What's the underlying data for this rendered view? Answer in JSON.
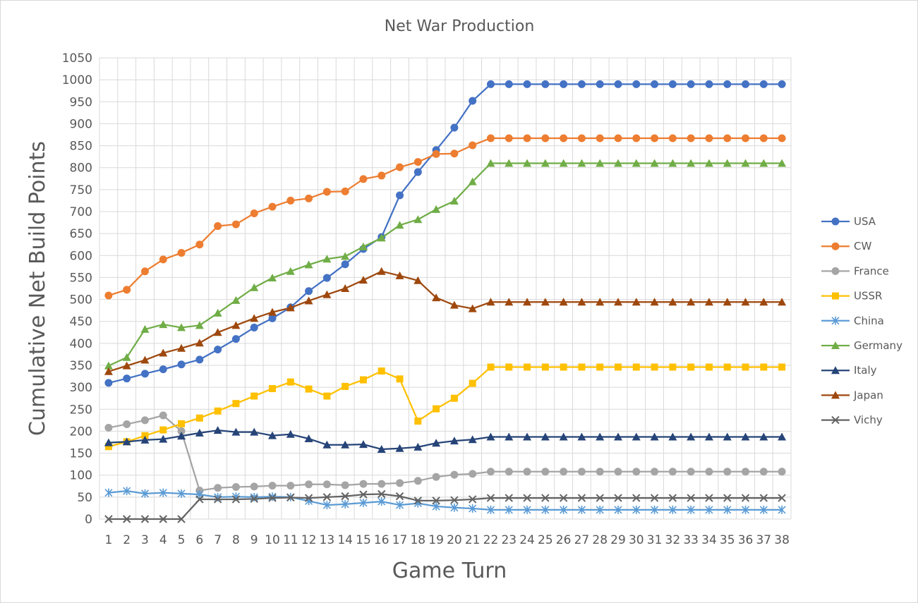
{
  "chart_data": {
    "type": "line",
    "title": "Net War Production",
    "xlabel": "Game Turn",
    "ylabel": "Cumulative Net Build Points",
    "ylim": [
      0,
      1050
    ],
    "ystep": 50,
    "grid": true,
    "legend_position": "right",
    "x": [
      1,
      2,
      3,
      4,
      5,
      6,
      7,
      8,
      9,
      10,
      11,
      12,
      13,
      14,
      15,
      16,
      17,
      18,
      19,
      20,
      21,
      22,
      23,
      24,
      25,
      26,
      27,
      28,
      29,
      30,
      31,
      32,
      33,
      34,
      35,
      36,
      37,
      38
    ],
    "series": [
      {
        "name": "USA",
        "color": "#4472c4",
        "marker": "circle",
        "values": [
          310,
          320,
          331,
          341,
          352,
          363,
          386,
          410,
          436,
          457,
          482,
          519,
          549,
          580,
          615,
          642,
          737,
          790,
          840,
          891,
          952,
          990,
          990,
          990,
          990,
          990,
          990,
          990,
          990,
          990,
          990,
          990,
          990,
          990,
          990,
          990,
          990,
          990
        ]
      },
      {
        "name": "CW",
        "color": "#ed7d31",
        "marker": "circle",
        "values": [
          509,
          522,
          564,
          591,
          606,
          625,
          667,
          671,
          696,
          711,
          725,
          730,
          745,
          746,
          774,
          782,
          801,
          813,
          831,
          832,
          851,
          867,
          867,
          867,
          867,
          867,
          867,
          867,
          867,
          867,
          867,
          867,
          867,
          867,
          867,
          867,
          867,
          867
        ]
      },
      {
        "name": "France",
        "color": "#a5a5a5",
        "marker": "circle",
        "values": [
          208,
          216,
          225,
          236,
          200,
          65,
          71,
          73,
          74,
          76,
          76,
          79,
          79,
          77,
          80,
          80,
          82,
          87,
          96,
          101,
          103,
          108,
          108,
          108,
          108,
          108,
          108,
          108,
          108,
          108,
          108,
          108,
          108,
          108,
          108,
          108,
          108,
          108
        ]
      },
      {
        "name": "USSR",
        "color": "#ffc000",
        "marker": "square",
        "values": [
          165,
          176,
          190,
          203,
          217,
          230,
          246,
          263,
          280,
          297,
          312,
          296,
          280,
          302,
          317,
          337,
          319,
          223,
          251,
          275,
          309,
          346,
          346,
          346,
          346,
          346,
          346,
          346,
          346,
          346,
          346,
          346,
          346,
          346,
          346,
          346,
          346,
          346
        ]
      },
      {
        "name": "China",
        "color": "#5b9bd5",
        "marker": "asterisk",
        "values": [
          60,
          64,
          58,
          60,
          58,
          56,
          50,
          51,
          50,
          51,
          50,
          41,
          32,
          34,
          37,
          40,
          32,
          36,
          29,
          26,
          24,
          21,
          21,
          21,
          21,
          21,
          21,
          21,
          21,
          21,
          21,
          21,
          21,
          21,
          21,
          21,
          21,
          21
        ]
      },
      {
        "name": "Germany",
        "color": "#70ad47",
        "marker": "triangle",
        "values": [
          349,
          368,
          432,
          443,
          436,
          441,
          469,
          498,
          527,
          549,
          564,
          579,
          592,
          598,
          620,
          640,
          669,
          682,
          705,
          724,
          768,
          810,
          810,
          810,
          810,
          810,
          810,
          810,
          810,
          810,
          810,
          810,
          810,
          810,
          810,
          810,
          810,
          810
        ]
      },
      {
        "name": "Italy",
        "color": "#264478",
        "marker": "triangle",
        "values": [
          174,
          176,
          180,
          182,
          189,
          196,
          202,
          198,
          198,
          190,
          193,
          183,
          169,
          169,
          170,
          159,
          161,
          164,
          173,
          178,
          181,
          187,
          187,
          187,
          187,
          187,
          187,
          187,
          187,
          187,
          187,
          187,
          187,
          187,
          187,
          187,
          187,
          187
        ]
      },
      {
        "name": "Japan",
        "color": "#9e480e",
        "marker": "triangle",
        "values": [
          336,
          349,
          362,
          378,
          389,
          401,
          425,
          441,
          457,
          471,
          481,
          497,
          511,
          525,
          544,
          564,
          554,
          543,
          504,
          487,
          479,
          494,
          494,
          494,
          494,
          494,
          494,
          494,
          494,
          494,
          494,
          494,
          494,
          494,
          494,
          494,
          494,
          494
        ]
      },
      {
        "name": "Vichy",
        "color": "#636363",
        "marker": "x",
        "values": [
          0,
          0,
          0,
          0,
          0,
          45,
          45,
          45,
          46,
          48,
          49,
          48,
          50,
          52,
          56,
          57,
          52,
          42,
          42,
          43,
          45,
          48,
          48,
          48,
          48,
          48,
          48,
          48,
          48,
          48,
          48,
          48,
          48,
          48,
          48,
          48,
          48,
          48
        ]
      }
    ]
  }
}
